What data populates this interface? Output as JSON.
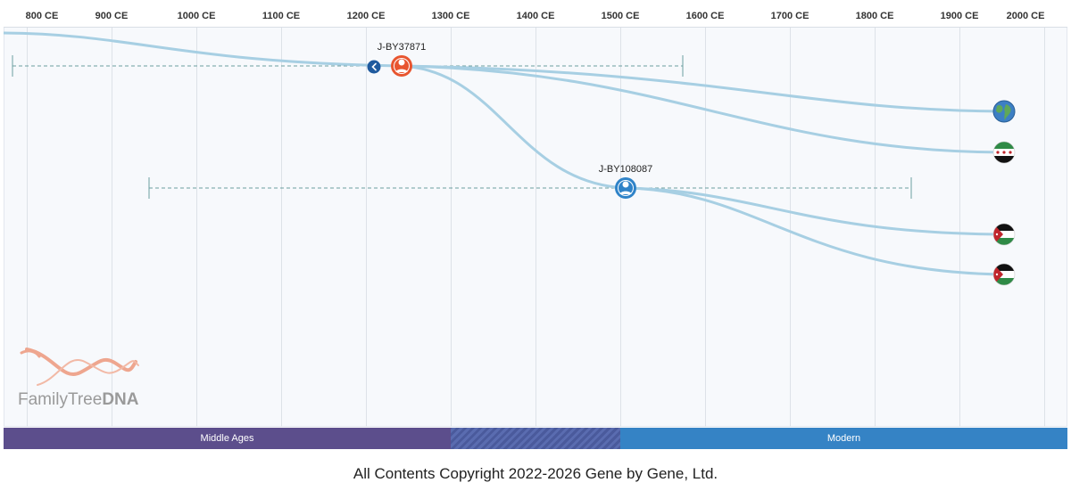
{
  "axis": {
    "ticks": [
      "800 CE",
      "900 CE",
      "1000 CE",
      "1100 CE",
      "1200 CE",
      "1300 CE",
      "1400 CE",
      "1500 CE",
      "1600 CE",
      "1700 CE",
      "1800 CE",
      "1900 CE",
      "2000 CE"
    ]
  },
  "nodes": [
    {
      "label": "J-BY37871",
      "color": "#e8552f",
      "kind": "ancestor-highlighted"
    },
    {
      "label": "J-BY108087",
      "color": "#2f83c8",
      "kind": "ancestor"
    }
  ],
  "leaves": [
    {
      "icon": "globe-icon"
    },
    {
      "icon": "syria-flag-icon"
    },
    {
      "icon": "jordan-flag-icon"
    },
    {
      "icon": "jordan-flag-icon"
    }
  ],
  "eras": [
    {
      "label": "Middle Ages",
      "color": "#5c4e8c"
    },
    {
      "label": "",
      "color": "#4e5ea0",
      "pattern": "hatched"
    },
    {
      "label": "Modern",
      "color": "#3583c5"
    }
  ],
  "logo": {
    "name_regular": "FamilyTree",
    "name_bold": "DNA"
  },
  "footer": {
    "copyright": "All Contents Copyright 2022-2026 Gene by Gene, Ltd."
  },
  "colors": {
    "branch": "#a7cfe3",
    "ci_line": "#6b9ea0"
  }
}
